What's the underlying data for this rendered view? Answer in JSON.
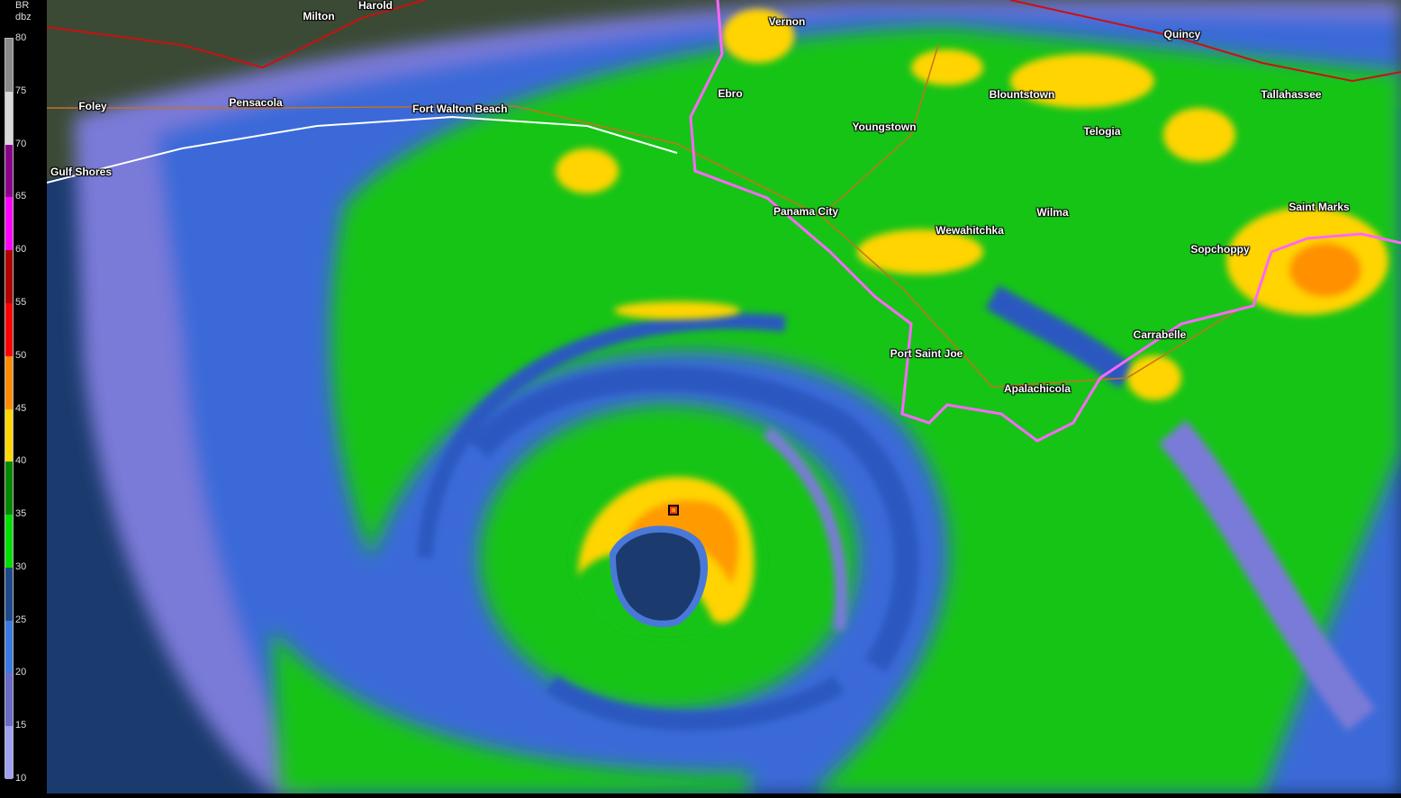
{
  "legend": {
    "product": "BR",
    "unit": "dbz",
    "ticks": [
      "80",
      "75",
      "70",
      "65",
      "60",
      "55",
      "50",
      "45",
      "40",
      "35",
      "30",
      "25",
      "20",
      "15",
      "10"
    ],
    "colors": [
      "#8a8a8a",
      "#d8d8d8",
      "#8b008b",
      "#ff00ff",
      "#b00000",
      "#ff0000",
      "#ff8c00",
      "#ffd700",
      "#008800",
      "#00e000",
      "#1f4a8a",
      "#3a7ae0",
      "#6a6ac8",
      "#a0a0f0"
    ]
  },
  "map": {
    "cities": [
      {
        "name": "Milton"
      },
      {
        "name": "Harold"
      },
      {
        "name": "Vernon"
      },
      {
        "name": "Quincy"
      },
      {
        "name": "Foley"
      },
      {
        "name": "Pensacola"
      },
      {
        "name": "Fort Walton Beach"
      },
      {
        "name": "Ebro"
      },
      {
        "name": "Blountstown"
      },
      {
        "name": "Tallahassee"
      },
      {
        "name": "Youngstown"
      },
      {
        "name": "Telogia"
      },
      {
        "name": "Gulf Shores"
      },
      {
        "name": "Panama City"
      },
      {
        "name": "Wilma"
      },
      {
        "name": "Saint Marks"
      },
      {
        "name": "Wewahitchka"
      },
      {
        "name": "Sopchoppy"
      },
      {
        "name": "Carrabelle"
      },
      {
        "name": "Port Saint Joe"
      },
      {
        "name": "Apalachicola"
      }
    ],
    "colors": {
      "ocean": "#1b3b6e",
      "coastline": "#ffffff",
      "warning_outline": "#ff66ff",
      "roads": "#c87020",
      "interstate": "#cc1010"
    }
  }
}
